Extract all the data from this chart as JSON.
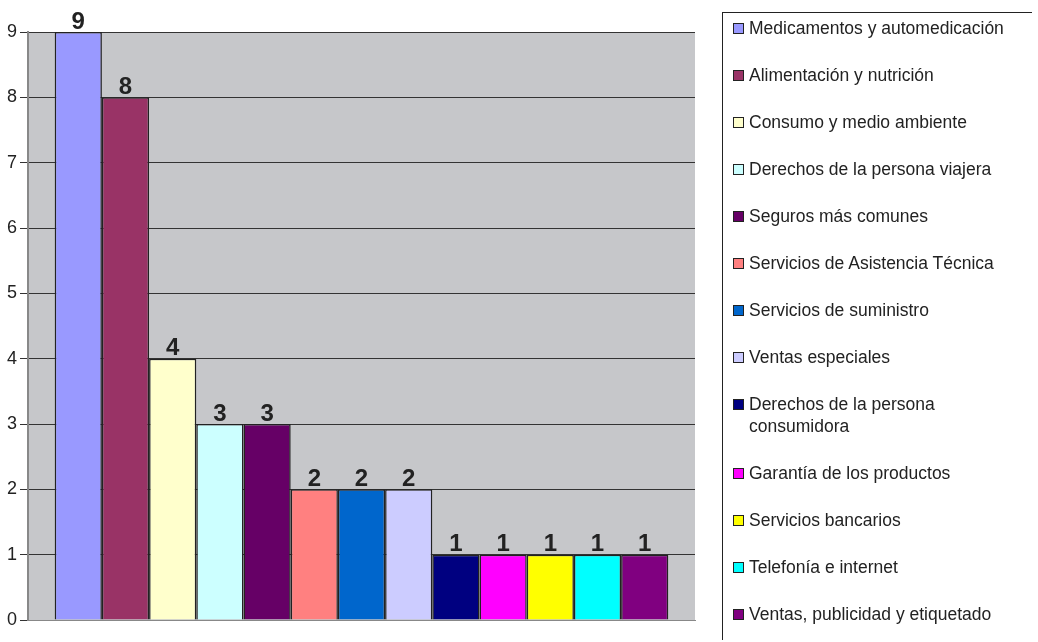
{
  "chart_data": {
    "type": "bar",
    "categories": [
      null
    ],
    "series": [
      {
        "name": "Medicamentos y automedicación",
        "color": "#9999ff",
        "values": [
          9
        ]
      },
      {
        "name": "Alimentación y nutrición",
        "color": "#993366",
        "values": [
          8
        ]
      },
      {
        "name": "Consumo y medio ambiente",
        "color": "#ffffcc",
        "values": [
          4
        ]
      },
      {
        "name": "Derechos de la persona viajera",
        "color": "#ccffff",
        "values": [
          3
        ]
      },
      {
        "name": "Seguros más comunes",
        "color": "#660066",
        "values": [
          3
        ]
      },
      {
        "name": "Servicios de Asistencia Técnica",
        "color": "#ff8080",
        "values": [
          2
        ]
      },
      {
        "name": "Servicios de suministro",
        "color": "#0066cc",
        "values": [
          2
        ]
      },
      {
        "name": "Ventas especiales",
        "color": "#ccccff",
        "values": [
          2
        ]
      },
      {
        "name": "Derechos de la persona consumidora",
        "color": "#000080",
        "values": [
          1
        ]
      },
      {
        "name": "Garantía de los productos",
        "color": "#ff00ff",
        "values": [
          1
        ]
      },
      {
        "name": "Servicios bancarios",
        "color": "#ffff00",
        "values": [
          1
        ]
      },
      {
        "name": "Telefonía e internet",
        "color": "#00ffff",
        "values": [
          1
        ]
      },
      {
        "name": "Ventas, publicidad y etiquetado",
        "color": "#800080",
        "values": [
          1
        ]
      }
    ],
    "ylim": [
      0,
      9
    ],
    "yticks": [
      0,
      1,
      2,
      3,
      4,
      5,
      6,
      7,
      8,
      9
    ],
    "grid": "y",
    "legend": "right",
    "tick_labels": "y",
    "data_labels": true
  }
}
